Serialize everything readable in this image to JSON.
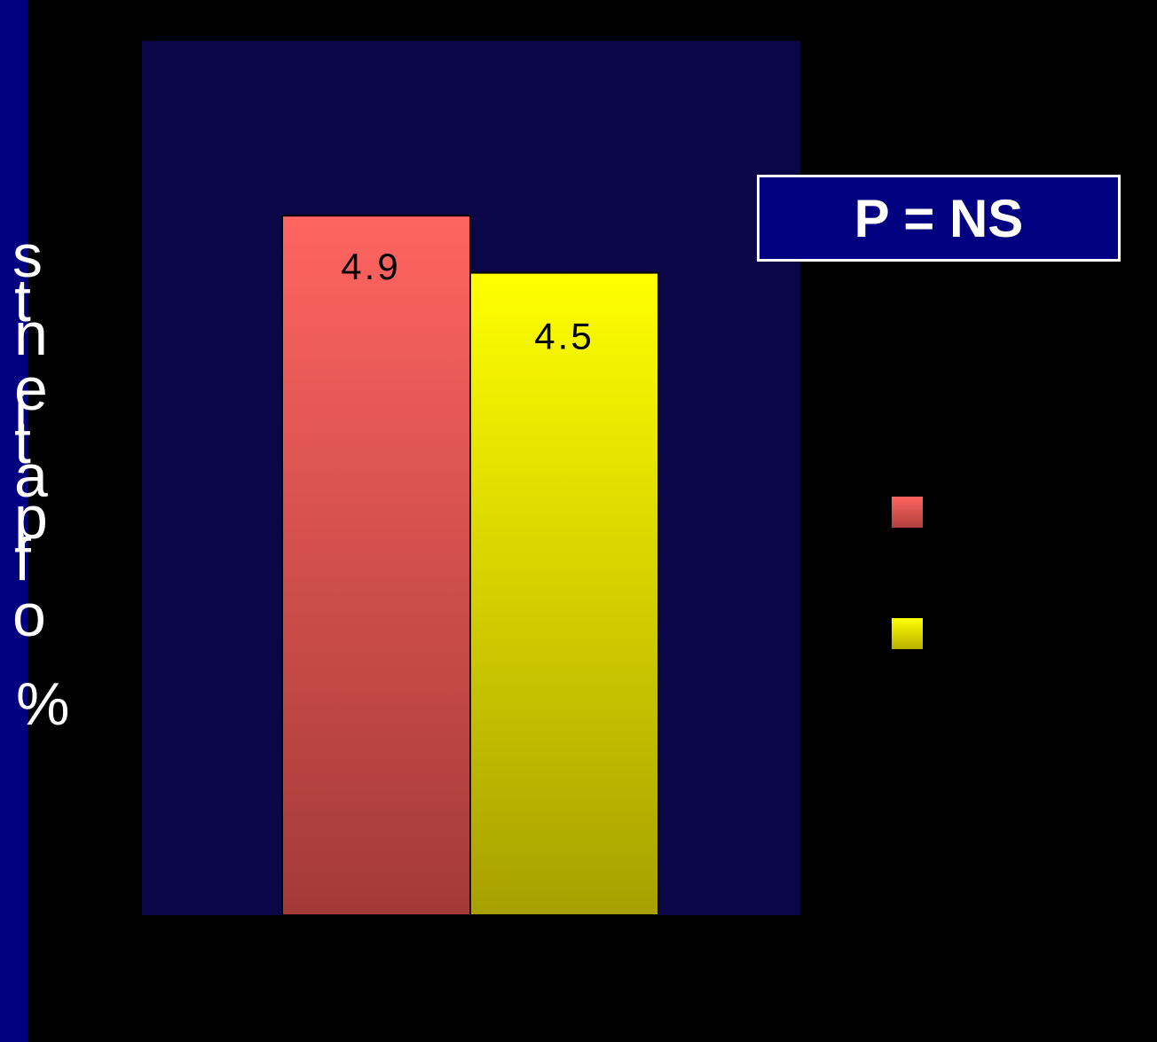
{
  "chart_data": {
    "type": "bar",
    "title": "",
    "xlabel": "",
    "ylabel": "% of patients",
    "ylabel_glyphs": [
      "s",
      "t",
      "n",
      "e",
      "i",
      "t",
      "a",
      "p",
      "f",
      "o",
      "%"
    ],
    "categories": [
      ""
    ],
    "series": [
      {
        "values": [
          4.9
        ],
        "color": "#ff6060"
      },
      {
        "values": [
          4.5
        ],
        "color": "#ffff00"
      }
    ],
    "data_labels": [
      "4.9",
      "4.5"
    ],
    "ylim": [
      0,
      6.125
    ],
    "grid": false,
    "legend": {
      "position": "right",
      "entries": [
        "",
        ""
      ]
    },
    "plot_background": "#0a0648",
    "page_background": "#000000",
    "accent_stripe": "#000080"
  },
  "annotation": {
    "label": "P = NS"
  }
}
